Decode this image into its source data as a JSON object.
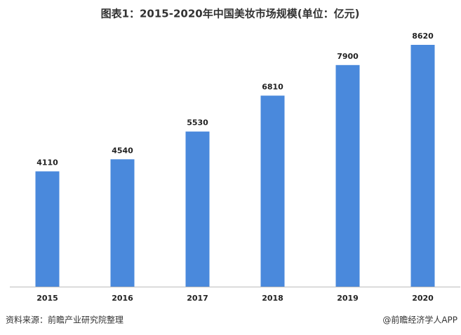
{
  "chart_data": {
    "type": "bar",
    "title": "图表1：2015-2020年中国美妆市场规模(单位：亿元)",
    "categories": [
      "2015",
      "2016",
      "2017",
      "2018",
      "2019",
      "2020"
    ],
    "values": [
      4110,
      4540,
      5530,
      6810,
      7900,
      8620
    ],
    "color": "#4a89dc",
    "source": "资料来源：前瞻产业研究院整理",
    "brand": "@前瞻经济学人APP"
  }
}
